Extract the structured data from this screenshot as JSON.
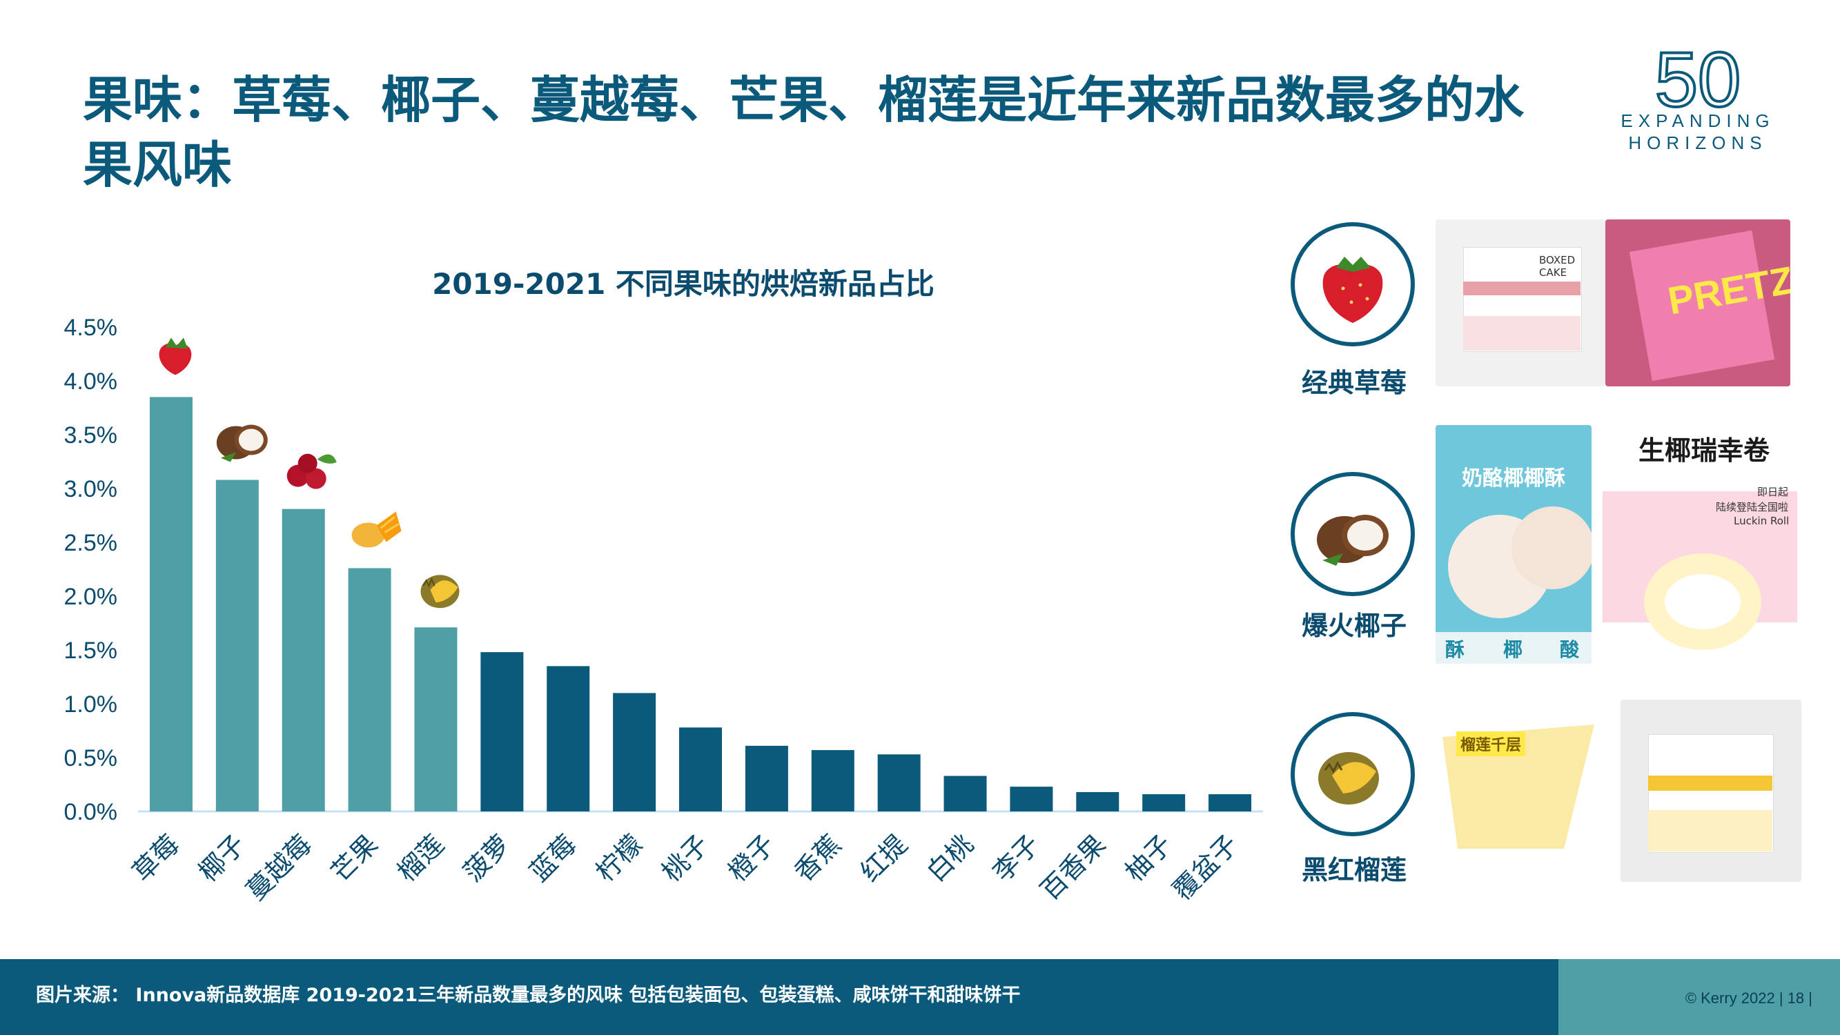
{
  "page": {
    "title": "果味：草莓、椰子、蔓越莓、芒果、榴莲是近年来新品数最多的水果风味",
    "logo": {
      "number": "50",
      "line1": "EXPANDING",
      "line2": "HORIZONS"
    },
    "footer_source": "图片来源： Innova新品数据库 2019-2021三年新品数量最多的风味 包括包装面包、包装蛋糕、咸味饼干和甜味饼干",
    "copyright": "© Kerry 2022 | 18 |"
  },
  "chart_data": {
    "type": "bar",
    "title": "2019-2021 不同果味的烘焙新品占比",
    "categories": [
      "草莓",
      "椰子",
      "蔓越莓",
      "芒果",
      "榴莲",
      "菠萝",
      "蓝莓",
      "柠檬",
      "桃子",
      "橙子",
      "香蕉",
      "红提",
      "白桃",
      "李子",
      "百香果",
      "柚子",
      "覆盆子"
    ],
    "values": [
      3.85,
      3.08,
      2.81,
      2.26,
      1.71,
      1.48,
      1.35,
      1.1,
      0.78,
      0.61,
      0.57,
      0.53,
      0.33,
      0.23,
      0.18,
      0.16,
      0.16
    ],
    "highlight_count": 5,
    "colors": {
      "highlight": "#4e9fa6",
      "base": "#0b5a7c"
    },
    "ylim": [
      0,
      4.5
    ],
    "yticks": [
      "0.0%",
      "0.5%",
      "1.0%",
      "1.5%",
      "2.0%",
      "2.5%",
      "3.0%",
      "3.5%",
      "4.0%",
      "4.5%"
    ],
    "fruit_icons": [
      "strawberry-icon",
      "coconut-icon",
      "cranberry-icon",
      "mango-icon",
      "durian-icon"
    ]
  },
  "showcase": [
    {
      "label": "经典草莓",
      "icon": "strawberry-icon"
    },
    {
      "label": "爆火椰子",
      "icon": "coconut-icon"
    },
    {
      "label": "黑红榴莲",
      "icon": "durian-icon"
    }
  ],
  "products": {
    "boxed_cake_text": "BOXED CAKE",
    "pretz_text": "PRETZ",
    "coconut_pastry_title": "奶酪椰椰酥",
    "coconut_pastry_tags": [
      "酥",
      "椰",
      "酸"
    ],
    "roll_title": "生椰瑞幸卷",
    "roll_line1": "即日起",
    "roll_line2": "陆续登陆全国啦",
    "roll_line3": "Luckin Roll",
    "durian_cake_text": "榴莲千层"
  }
}
